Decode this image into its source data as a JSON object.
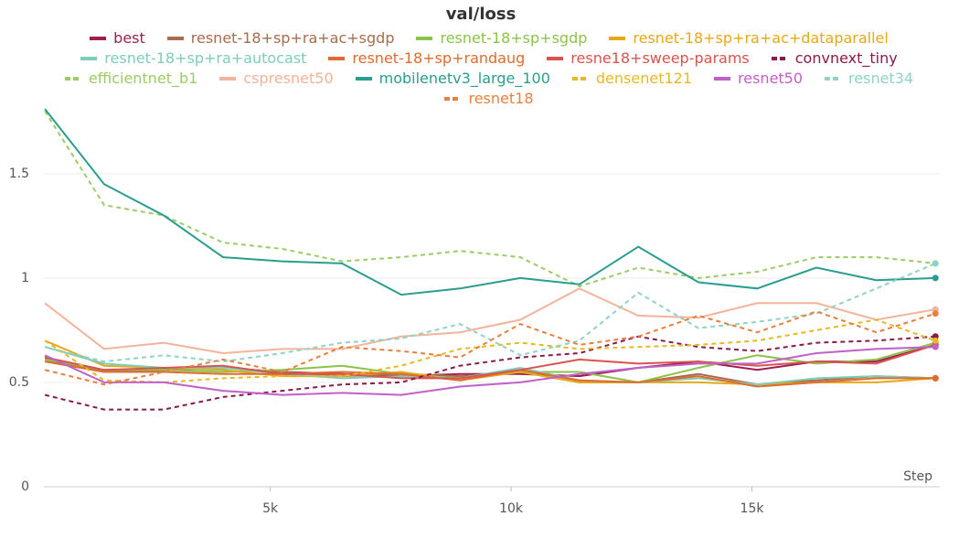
{
  "chart_data": {
    "type": "line",
    "title": "val/loss",
    "x_label": "Step",
    "x": [
      320,
      1550,
      2790,
      4020,
      5250,
      6490,
      7720,
      8940,
      10190,
      11420,
      12640,
      13890,
      15110,
      16340,
      17580,
      18810
    ],
    "xlim": [
      300,
      18900
    ],
    "xticks": [
      {
        "value": 5000,
        "label": "5k"
      },
      {
        "value": 10000,
        "label": "10k"
      },
      {
        "value": 15000,
        "label": "15k"
      }
    ],
    "ylim": [
      0,
      1.85
    ],
    "yticks": [
      0,
      0.5,
      1,
      1.5
    ],
    "grid": true,
    "series": [
      {
        "name": "best",
        "color": "#9c1f4f",
        "dashed": false,
        "values": [
          0.62,
          0.56,
          0.56,
          0.57,
          0.55,
          0.54,
          0.53,
          0.54,
          0.54,
          0.53,
          0.57,
          0.6,
          0.56,
          0.6,
          0.6,
          0.68
        ]
      },
      {
        "name": "resnet-18+sp+ra+ac+sgdp",
        "color": "#a86b4d",
        "dashed": false,
        "values": [
          0.61,
          0.55,
          0.56,
          0.57,
          0.55,
          0.53,
          0.54,
          0.53,
          0.55,
          0.5,
          0.5,
          0.54,
          0.49,
          0.51,
          0.53,
          0.52
        ]
      },
      {
        "name": "resnet-18+sp+sgdp",
        "color": "#8bc34a",
        "dashed": false,
        "values": [
          0.61,
          0.56,
          0.56,
          0.55,
          0.56,
          0.58,
          0.54,
          0.52,
          0.55,
          0.55,
          0.5,
          0.57,
          0.63,
          0.59,
          0.61,
          0.69
        ]
      },
      {
        "name": "resnet-18+sp+ra+ac+dataparallel",
        "color": "#e6a817",
        "dashed": false,
        "values": [
          0.7,
          0.58,
          0.57,
          0.56,
          0.53,
          0.53,
          0.55,
          0.51,
          0.55,
          0.5,
          0.5,
          0.5,
          0.49,
          0.5,
          0.5,
          0.52
        ]
      },
      {
        "name": "resnet-18+sp+ra+autocast",
        "color": "#7ecdb8",
        "dashed": false,
        "values": [
          0.67,
          0.59,
          0.57,
          0.57,
          0.54,
          0.52,
          0.53,
          0.52,
          0.57,
          0.51,
          0.5,
          0.52,
          0.49,
          0.52,
          0.53,
          0.52
        ]
      },
      {
        "name": "resnet-18+sp+randaug",
        "color": "#e06b2e",
        "dashed": false,
        "values": [
          0.6,
          0.55,
          0.55,
          0.54,
          0.54,
          0.55,
          0.54,
          0.51,
          0.56,
          0.51,
          0.5,
          0.53,
          0.48,
          0.5,
          0.52,
          0.52
        ]
      },
      {
        "name": "resne18+sweep-params",
        "color": "#d9534f",
        "dashed": false,
        "values": [
          0.62,
          0.56,
          0.57,
          0.58,
          0.54,
          0.54,
          0.52,
          0.52,
          0.56,
          0.61,
          0.59,
          0.6,
          0.58,
          0.6,
          0.59,
          0.68
        ]
      },
      {
        "name": "convnext_tiny",
        "color": "#8b1a4a",
        "dashed": true,
        "values": [
          0.44,
          0.37,
          0.37,
          0.43,
          0.46,
          0.49,
          0.5,
          0.58,
          0.62,
          0.64,
          0.72,
          0.67,
          0.65,
          0.69,
          0.7,
          0.72
        ]
      },
      {
        "name": "efficientnet_b1",
        "color": "#9ccc65",
        "dashed": true,
        "values": [
          1.8,
          1.35,
          1.3,
          1.17,
          1.14,
          1.08,
          1.1,
          1.13,
          1.1,
          0.96,
          1.05,
          1.0,
          1.03,
          1.1,
          1.1,
          1.07
        ]
      },
      {
        "name": "cspresnet50",
        "color": "#f4b39b",
        "dashed": false,
        "values": [
          0.88,
          0.66,
          0.69,
          0.64,
          0.66,
          0.66,
          0.72,
          0.74,
          0.8,
          0.95,
          0.82,
          0.81,
          0.88,
          0.88,
          0.8,
          0.85
        ]
      },
      {
        "name": "mobilenetv3_large_100",
        "color": "#2a9d8f",
        "dashed": false,
        "values": [
          1.81,
          1.45,
          1.3,
          1.1,
          1.08,
          1.07,
          0.92,
          0.95,
          1.0,
          0.97,
          1.15,
          0.98,
          0.95,
          1.05,
          0.99,
          1.0
        ]
      },
      {
        "name": "densenet121",
        "color": "#e8b923",
        "dashed": true,
        "values": [
          0.7,
          0.51,
          0.5,
          0.52,
          0.53,
          0.53,
          0.58,
          0.66,
          0.69,
          0.66,
          0.67,
          0.68,
          0.7,
          0.75,
          0.8,
          0.7
        ]
      },
      {
        "name": "resnet50",
        "color": "#c060c8",
        "dashed": false,
        "values": [
          0.63,
          0.5,
          0.5,
          0.46,
          0.44,
          0.45,
          0.44,
          0.48,
          0.5,
          0.54,
          0.57,
          0.59,
          0.59,
          0.64,
          0.66,
          0.67
        ]
      },
      {
        "name": "resnet34",
        "color": "#8fd3c8",
        "dashed": true,
        "values": [
          0.67,
          0.6,
          0.63,
          0.6,
          0.64,
          0.69,
          0.71,
          0.78,
          0.63,
          0.7,
          0.93,
          0.76,
          0.79,
          0.83,
          0.95,
          1.07
        ]
      },
      {
        "name": "resnet18",
        "color": "#e97f3d",
        "dashed": true,
        "values": [
          0.56,
          0.49,
          0.55,
          0.61,
          0.55,
          0.67,
          0.65,
          0.62,
          0.78,
          0.68,
          0.72,
          0.82,
          0.74,
          0.84,
          0.74,
          0.83
        ]
      }
    ]
  }
}
